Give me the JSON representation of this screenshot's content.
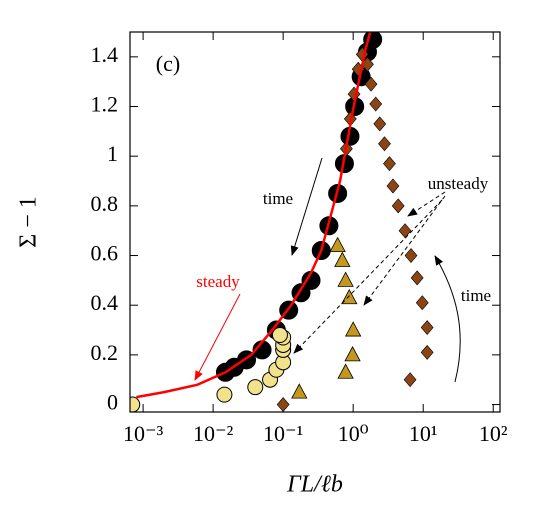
{
  "chart_data": {
    "type": "scatter",
    "xlabel": "Γ̇L/ℓb",
    "ylabel": "Σ − 1",
    "panel_label": "(c)",
    "annotations": {
      "time_left": "time",
      "time_right": "time",
      "unsteady": "unsteady",
      "steady": "steady"
    },
    "xscale": "log",
    "xlim": [
      0.00065,
      125
    ],
    "ylim": [
      -0.03,
      1.5
    ],
    "xticks": [
      {
        "value": 0.001,
        "label": "10⁻³"
      },
      {
        "value": 0.01,
        "label": "10⁻²"
      },
      {
        "value": 0.1,
        "label": "10⁻¹"
      },
      {
        "value": 1,
        "label": "10⁰"
      },
      {
        "value": 10,
        "label": "10¹"
      },
      {
        "value": 100,
        "label": "10²"
      }
    ],
    "yticks": [
      0,
      0.2,
      0.4,
      0.6,
      0.8,
      1,
      1.2,
      1.4
    ],
    "series": [
      {
        "marker": "circle",
        "color": "#000000",
        "x": [
          0.015,
          0.02,
          0.03,
          0.05,
          0.08,
          0.12,
          0.18,
          0.25,
          0.35,
          0.45,
          0.6,
          0.75,
          0.9,
          1.05,
          1.3,
          1.6,
          1.9
        ],
        "values": [
          0.13,
          0.15,
          0.18,
          0.22,
          0.3,
          0.38,
          0.45,
          0.5,
          0.62,
          0.72,
          0.85,
          0.97,
          1.08,
          1.2,
          1.32,
          1.42,
          1.47
        ]
      },
      {
        "marker": "circle",
        "color": "#f2e28c",
        "x": [
          0.0007,
          0.0145,
          0.04,
          0.065,
          0.08,
          0.1,
          0.1,
          0.1,
          0.1,
          0.09
        ],
        "values": [
          0.0,
          0.04,
          0.07,
          0.1,
          0.14,
          0.17,
          0.22,
          0.24,
          0.27,
          0.28
        ]
      },
      {
        "marker": "triangle",
        "color": "#c4981c",
        "x": [
          0.17,
          0.78,
          0.98,
          1.0,
          0.88,
          0.78,
          0.7,
          0.6
        ],
        "values": [
          0.05,
          0.13,
          0.2,
          0.3,
          0.43,
          0.5,
          0.58,
          0.64
        ]
      },
      {
        "marker": "diamond",
        "color": "#8b4513",
        "x": [
          0.1,
          6.5,
          11.4,
          11.4,
          9.7,
          8.2,
          6.7,
          5.5,
          4.4,
          3.7,
          3.3,
          2.8,
          2.4,
          2.1,
          1.8,
          1.6,
          1.35,
          1.18,
          1.03,
          0.91,
          0.8
        ],
        "values": [
          0.0,
          0.1,
          0.21,
          0.31,
          0.41,
          0.51,
          0.6,
          0.7,
          0.8,
          0.88,
          0.97,
          1.05,
          1.13,
          1.21,
          1.29,
          1.37,
          1.41,
          1.35,
          1.25,
          1.15,
          1.03
        ]
      },
      {
        "marker": "line",
        "color": "#ff0000",
        "x": [
          0.0008,
          0.002,
          0.006,
          0.015,
          0.035,
          0.07,
          0.13,
          0.25,
          0.35,
          0.65,
          1.0,
          1.5,
          1.75
        ],
        "values": [
          0.03,
          0.05,
          0.08,
          0.13,
          0.2,
          0.3,
          0.4,
          0.53,
          0.62,
          0.9,
          1.19,
          1.43,
          1.5
        ]
      }
    ]
  }
}
